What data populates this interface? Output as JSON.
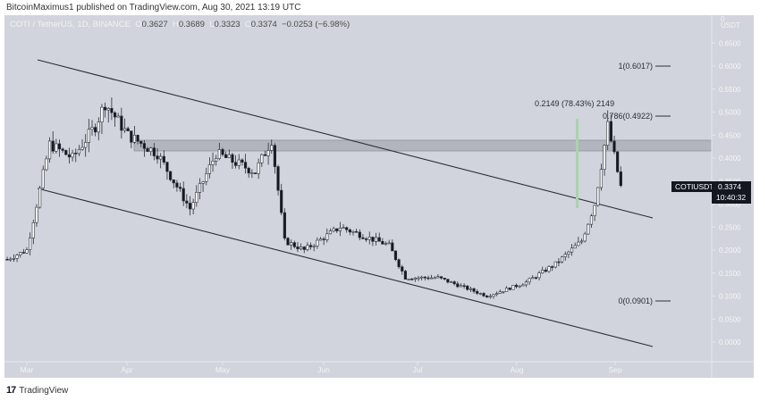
{
  "header": {
    "published": "BitcoinMaximus1 published on TradingView.com, Aug 30, 2021 13:19 UTC"
  },
  "legend": {
    "symbol": "COTI / TetherUS, 1D, BINANCE",
    "o_label": "O",
    "o": "0.3627",
    "h_label": "H",
    "h": "0.3689",
    "l_label": "L",
    "l": "0.3323",
    "c_label": "C",
    "c": "0.3374",
    "change": "−0.0253 (−6.98%)"
  },
  "price_axis": {
    "currency": "USDT",
    "ticks": [
      "0.6500",
      "0.6000",
      "0.5500",
      "0.5000",
      "0.4500",
      "0.4000",
      "0.3500",
      "0.3000",
      "0.2500",
      "0.2000",
      "0.1500",
      "0.1000",
      "0.0500",
      "0.0000"
    ],
    "last_price_label": {
      "symbol": "COTIUSDT",
      "price": "0.3374",
      "countdown": "10:40:32"
    }
  },
  "time_axis": {
    "ticks": [
      "Mar",
      "Apr",
      "May",
      "Jun",
      "Jul",
      "Aug",
      "Sep"
    ]
  },
  "annotations": {
    "fib_1": "1(0.6017)",
    "fib_786": "0.786(0.4922)",
    "fib_0": "0(0.0901)",
    "measure": "0.2149 (78.43%) 2149"
  },
  "footer": {
    "brand": "TradingView",
    "logo": "17"
  },
  "colors": {
    "background": "#d1d4dc",
    "axis_text": "#f5f5f5",
    "line": "#2a2e39",
    "candle_up": "#ffffff",
    "candle_down": "#131722",
    "zone": "#b2b5be",
    "measure": "#a5d6a7",
    "label_bg": "#131722"
  },
  "chart_data": {
    "type": "candlestick",
    "title": "COTI / TetherUS, 1D, BINANCE",
    "xlabel": "",
    "ylabel": "USDT",
    "ylim": [
      0,
      0.65
    ],
    "x_ticks": [
      "Mar",
      "Apr",
      "May",
      "Jun",
      "Jul",
      "Aug",
      "Sep"
    ],
    "last": {
      "open": 0.3627,
      "high": 0.3689,
      "low": 0.3323,
      "close": 0.3374,
      "change": -0.0253,
      "change_pct": -6.98
    },
    "approx_path": [
      {
        "date": "2021-02-23",
        "close": 0.18
      },
      {
        "date": "2021-03-01",
        "close": 0.2
      },
      {
        "date": "2021-03-08",
        "close": 0.43
      },
      {
        "date": "2021-03-15",
        "close": 0.4
      },
      {
        "date": "2021-03-22",
        "close": 0.47
      },
      {
        "date": "2021-03-25",
        "close": 0.52
      },
      {
        "date": "2021-04-01",
        "close": 0.45
      },
      {
        "date": "2021-04-10",
        "close": 0.41
      },
      {
        "date": "2021-04-20",
        "close": 0.29
      },
      {
        "date": "2021-04-28",
        "close": 0.41
      },
      {
        "date": "2021-05-10",
        "close": 0.37
      },
      {
        "date": "2021-05-15",
        "close": 0.44
      },
      {
        "date": "2021-05-19",
        "close": 0.22
      },
      {
        "date": "2021-05-25",
        "close": 0.2
      },
      {
        "date": "2021-06-05",
        "close": 0.25
      },
      {
        "date": "2021-06-20",
        "close": 0.21
      },
      {
        "date": "2021-06-25",
        "close": 0.14
      },
      {
        "date": "2021-07-05",
        "close": 0.14
      },
      {
        "date": "2021-07-20",
        "close": 0.1
      },
      {
        "date": "2021-08-01",
        "close": 0.13
      },
      {
        "date": "2021-08-10",
        "close": 0.17
      },
      {
        "date": "2021-08-18",
        "close": 0.22
      },
      {
        "date": "2021-08-22",
        "close": 0.3
      },
      {
        "date": "2021-08-26",
        "close": 0.47
      },
      {
        "date": "2021-08-30",
        "close": 0.3374
      }
    ],
    "annotations": [
      {
        "type": "fib",
        "level": "1",
        "price": 0.6017
      },
      {
        "type": "fib",
        "level": "0.786",
        "price": 0.4922
      },
      {
        "type": "fib",
        "level": "0",
        "price": 0.0901
      },
      {
        "type": "measure",
        "text": "0.2149 (78.43%) 2149"
      },
      {
        "type": "zone",
        "from": 0.415,
        "to": 0.44
      },
      {
        "type": "channel",
        "upper": "descending",
        "lower": "descending"
      }
    ],
    "grid": false,
    "legend_position": "top-left"
  }
}
